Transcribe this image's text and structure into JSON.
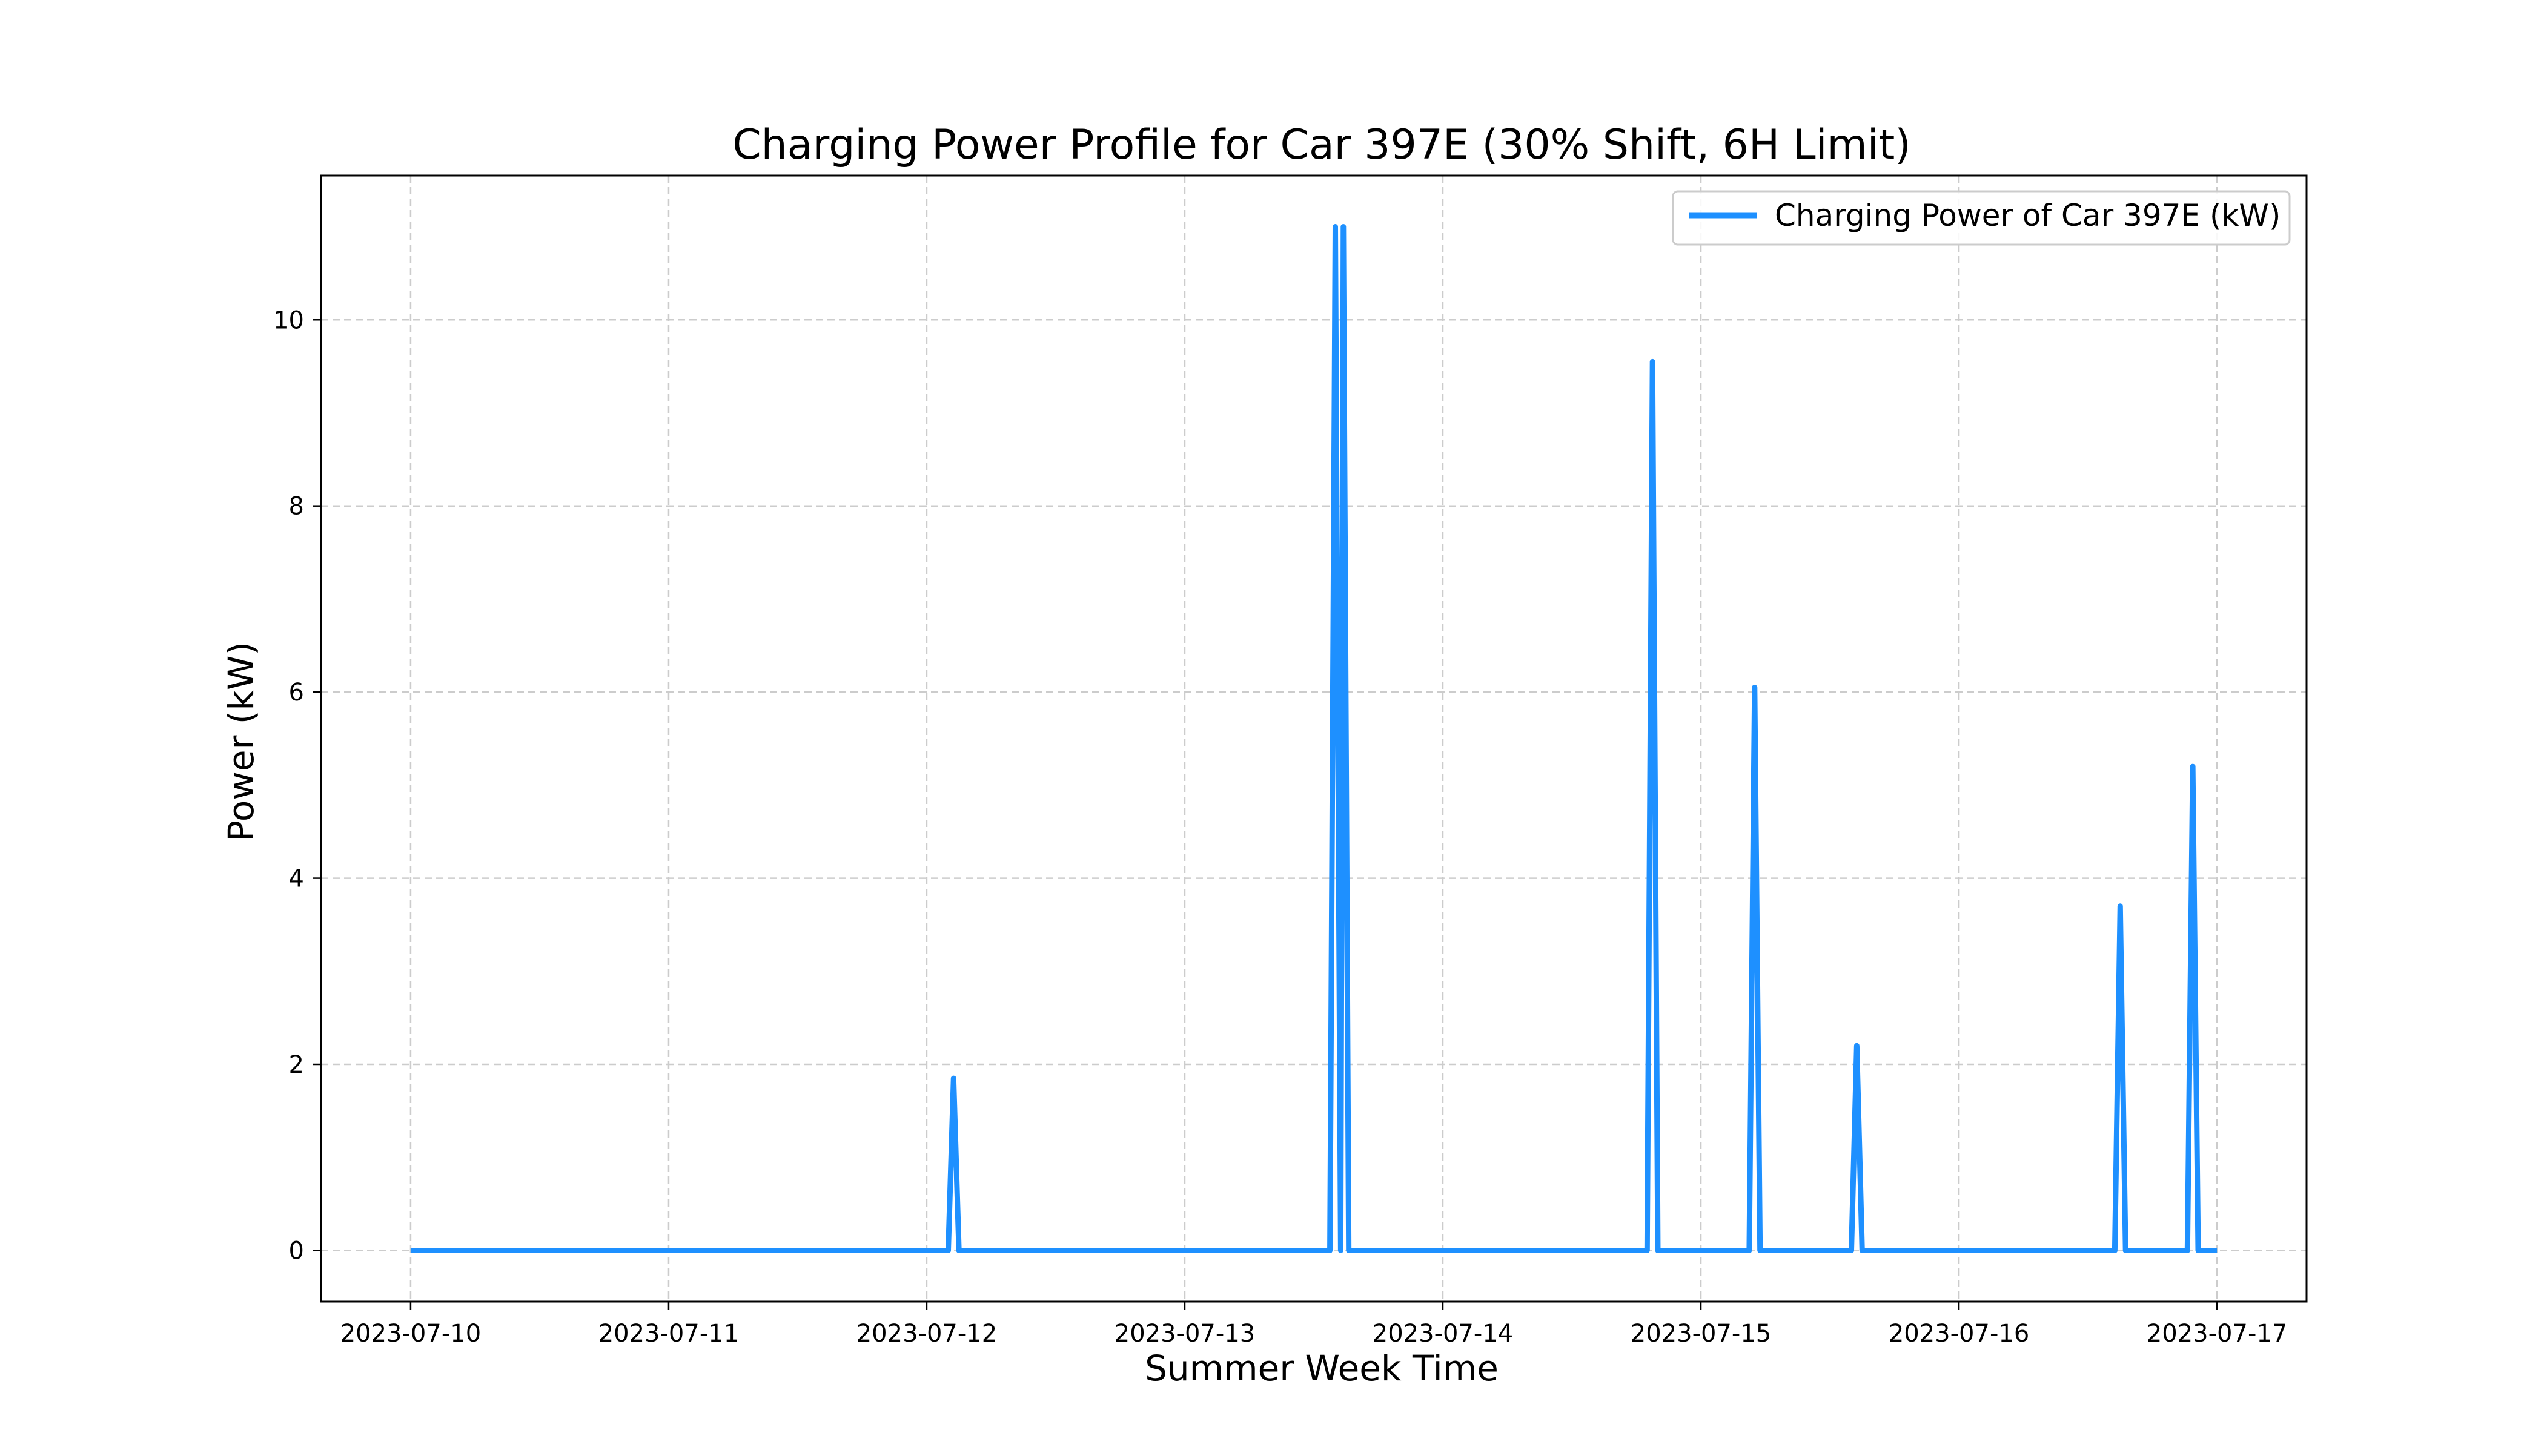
{
  "chart_data": {
    "type": "line",
    "title": "Charging Power Profile for Car 397E (30% Shift, 6H Limit)",
    "xlabel": "Summer Week Time",
    "ylabel": "Power (kW)",
    "x_ticks": [
      "2023-07-10",
      "2023-07-11",
      "2023-07-12",
      "2023-07-13",
      "2023-07-14",
      "2023-07-15",
      "2023-07-16",
      "2023-07-17"
    ],
    "y_ticks": [
      0,
      2,
      4,
      6,
      8,
      10
    ],
    "xlim": [
      "2023-07-09 15:40",
      "2023-07-17 08:20"
    ],
    "ylim": [
      -0.55,
      11.55
    ],
    "grid": true,
    "legend_position": "top-right",
    "series": [
      {
        "name": "Charging Power of Car 397E (kW)",
        "color": "#1e90ff",
        "points": [
          [
            "2023-07-10 00:00",
            0
          ],
          [
            "2023-07-12 02:00",
            0
          ],
          [
            "2023-07-12 02:30",
            1.85
          ],
          [
            "2023-07-12 03:00",
            0
          ],
          [
            "2023-07-13 13:30",
            0
          ],
          [
            "2023-07-13 14:00",
            11.0
          ],
          [
            "2023-07-13 14:30",
            0
          ],
          [
            "2023-07-13 14:45",
            11.0
          ],
          [
            "2023-07-13 15:15",
            0
          ],
          [
            "2023-07-14 19:00",
            0
          ],
          [
            "2023-07-14 19:30",
            9.55
          ],
          [
            "2023-07-14 20:00",
            0
          ],
          [
            "2023-07-15 04:30",
            0
          ],
          [
            "2023-07-15 05:00",
            6.05
          ],
          [
            "2023-07-15 05:30",
            0
          ],
          [
            "2023-07-15 14:00",
            0
          ],
          [
            "2023-07-15 14:30",
            2.2
          ],
          [
            "2023-07-15 15:00",
            0
          ],
          [
            "2023-07-16 14:30",
            0
          ],
          [
            "2023-07-16 15:00",
            3.7
          ],
          [
            "2023-07-16 15:30",
            0
          ],
          [
            "2023-07-16 21:15",
            0
          ],
          [
            "2023-07-16 21:45",
            5.2
          ],
          [
            "2023-07-16 22:15",
            0
          ],
          [
            "2023-07-17 00:00",
            0
          ]
        ]
      }
    ]
  }
}
